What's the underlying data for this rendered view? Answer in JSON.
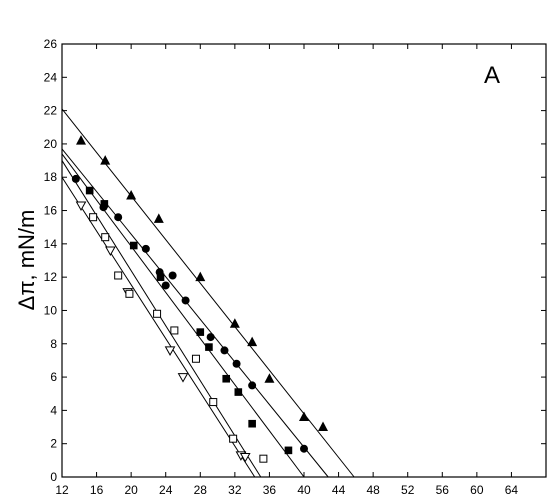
{
  "chart_data": {
    "type": "scatter",
    "panel_label": "A",
    "title": "",
    "xlabel": "",
    "ylabel": "Δπ, mN/m",
    "xlim": [
      12,
      68
    ],
    "ylim": [
      0,
      26
    ],
    "x_ticks": [
      12,
      16,
      20,
      24,
      28,
      32,
      36,
      40,
      44,
      48,
      52,
      56,
      60,
      64,
      68
    ],
    "x_tick_labels": [
      "12",
      "16",
      "20",
      "24",
      "28",
      "32",
      "36",
      "40",
      "44",
      "48",
      "52",
      "56",
      "60",
      "64",
      ""
    ],
    "y_ticks": [
      0,
      2,
      4,
      6,
      8,
      10,
      12,
      14,
      16,
      18,
      20,
      22,
      24,
      26
    ],
    "grid": false,
    "legend": "none",
    "series": [
      {
        "marker": "triangle-up-filled",
        "points": [
          [
            14.2,
            20.2
          ],
          [
            17.0,
            19.0
          ],
          [
            20.0,
            16.9
          ],
          [
            23.2,
            15.5
          ],
          [
            28.0,
            12.0
          ],
          [
            32.0,
            9.2
          ],
          [
            34.0,
            8.1
          ],
          [
            36.0,
            5.9
          ],
          [
            40.0,
            3.6
          ],
          [
            42.2,
            3.0
          ]
        ],
        "fit": [
          [
            12.0,
            22.1
          ],
          [
            45.8,
            0.0
          ]
        ]
      },
      {
        "marker": "circle-filled",
        "points": [
          [
            13.6,
            17.9
          ],
          [
            16.8,
            16.2
          ],
          [
            18.5,
            15.6
          ],
          [
            21.7,
            13.7
          ],
          [
            23.3,
            12.3
          ],
          [
            24.0,
            11.5
          ],
          [
            24.8,
            12.1
          ],
          [
            26.3,
            10.6
          ],
          [
            29.2,
            8.4
          ],
          [
            30.8,
            7.6
          ],
          [
            32.2,
            6.8
          ],
          [
            34.0,
            5.5
          ],
          [
            40.0,
            1.7
          ]
        ],
        "fit": [
          [
            12.0,
            19.7
          ],
          [
            42.8,
            0.0
          ]
        ]
      },
      {
        "marker": "square-filled",
        "points": [
          [
            15.2,
            17.2
          ],
          [
            16.9,
            16.4
          ],
          [
            20.3,
            13.9
          ],
          [
            23.4,
            12.0
          ],
          [
            28.0,
            8.7
          ],
          [
            29.0,
            7.8
          ],
          [
            31.0,
            5.9
          ],
          [
            32.4,
            5.1
          ],
          [
            34.0,
            3.2
          ],
          [
            38.2,
            1.6
          ]
        ],
        "fit": [
          [
            12.0,
            19.4
          ],
          [
            40.0,
            0.0
          ]
        ]
      },
      {
        "marker": "triangle-down-open",
        "points": [
          [
            14.2,
            16.3
          ],
          [
            17.6,
            13.6
          ],
          [
            19.6,
            11.1
          ],
          [
            24.5,
            7.6
          ],
          [
            26.0,
            6.0
          ],
          [
            32.7,
            1.3
          ],
          [
            33.2,
            1.2
          ]
        ],
        "fit": [
          [
            12.0,
            18.0
          ],
          [
            34.3,
            0.0
          ]
        ]
      },
      {
        "marker": "square-open",
        "points": [
          [
            15.6,
            15.6
          ],
          [
            17.0,
            14.4
          ],
          [
            18.5,
            12.1
          ],
          [
            19.8,
            11.0
          ],
          [
            23.0,
            9.8
          ],
          [
            25.0,
            8.8
          ],
          [
            27.5,
            7.1
          ],
          [
            29.5,
            4.5
          ],
          [
            31.8,
            2.3
          ],
          [
            35.3,
            1.1
          ]
        ],
        "fit": [
          [
            12.0,
            19.0
          ],
          [
            35.0,
            0.0
          ]
        ]
      }
    ]
  }
}
